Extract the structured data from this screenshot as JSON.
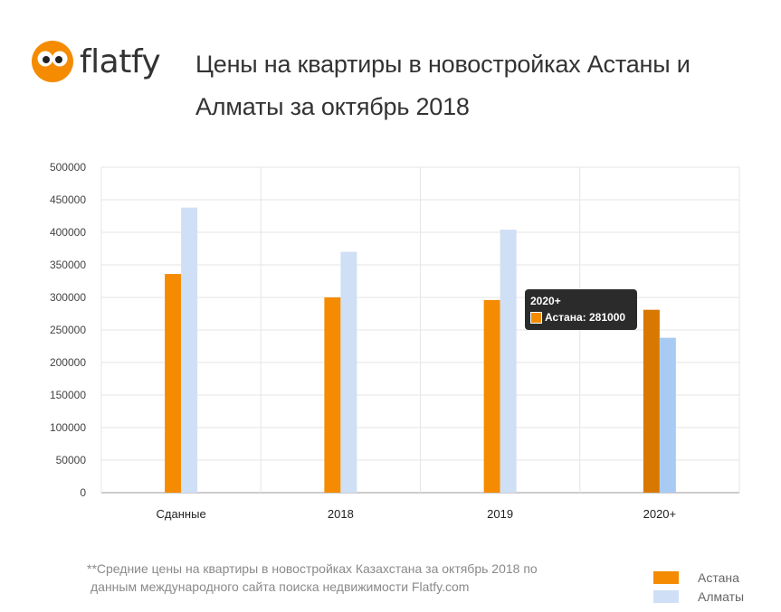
{
  "logo": {
    "text": "flatfy"
  },
  "title": "Цены на квартиры в новостройках Астаны и Алматы за октябрь 2018",
  "colors": {
    "astana": "#f48b00",
    "astana_active": "#d97800",
    "almaty": "#cfdff5",
    "almaty_active": "#a9cbf3",
    "grid": "#e6e6e6",
    "axis": "#9a9a9a"
  },
  "chart_data": {
    "type": "bar",
    "categories": [
      "Сданные",
      "2018",
      "2019",
      "2020+"
    ],
    "series": [
      {
        "name": "Астана",
        "values": [
          336000,
          300000,
          296000,
          281000
        ]
      },
      {
        "name": "Алматы",
        "values": [
          438000,
          370000,
          404000,
          238000
        ]
      }
    ],
    "yticks": [
      "0",
      "50000",
      "100000",
      "150000",
      "200000",
      "250000",
      "300000",
      "350000",
      "400000",
      "450000",
      "500000"
    ],
    "ylim": [
      0,
      500000
    ],
    "grid": true,
    "legend": "bottom-right"
  },
  "tooltip": {
    "title": "2020+",
    "series": "Астана",
    "value": "281000"
  },
  "footnote": {
    "line1": "**Средние цены на квартиры в новостройках Казахстана за октябрь 2018 по",
    "line2": "данным международного сайта поиска недвижимости Flatfy.com"
  },
  "legend": [
    {
      "label": "Астана",
      "color": "#f48b00"
    },
    {
      "label": "Алматы",
      "color": "#cfdff5"
    }
  ]
}
